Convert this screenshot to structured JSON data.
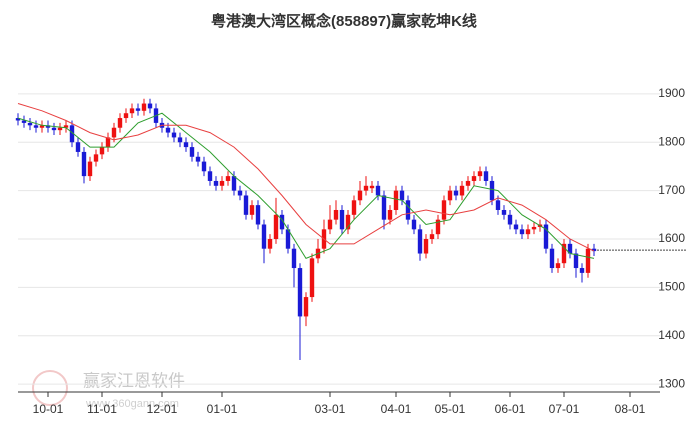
{
  "chart_data": {
    "type": "candlestick",
    "title": "粤港澳大湾区概念(858897)赢家乾坤K线",
    "watermark": "赢家江恩软件",
    "watermark_url": "www.360gann.com",
    "up_color": "#ee1111",
    "down_color": "#1a1ad6",
    "xlim": [
      -0.5,
      107
    ],
    "ylim": [
      1290,
      1970
    ],
    "yticks": [
      1300,
      1400,
      1500,
      1600,
      1700,
      1800,
      1900
    ],
    "grid": true,
    "xticks": [
      {
        "value": 5,
        "label": "10-01"
      },
      {
        "value": 14,
        "label": "11-01"
      },
      {
        "value": 24,
        "label": "12-01"
      },
      {
        "value": 34,
        "label": "01-01"
      },
      {
        "value": 52,
        "label": "03-01"
      },
      {
        "value": 63,
        "label": "04-01"
      },
      {
        "value": 72,
        "label": "05-01"
      },
      {
        "value": 82,
        "label": "06-01"
      },
      {
        "value": 91,
        "label": "07-01"
      },
      {
        "value": 102,
        "label": "08-01"
      }
    ],
    "reference_line": 1577,
    "open": [
      1850,
      1845,
      1840,
      1835,
      1830,
      1835,
      1830,
      1825,
      1830,
      1835,
      1800,
      1780,
      1730,
      1760,
      1775,
      1790,
      1810,
      1830,
      1850,
      1860,
      1870,
      1865,
      1880,
      1870,
      1840,
      1830,
      1820,
      1810,
      1800,
      1790,
      1770,
      1760,
      1740,
      1720,
      1710,
      1720,
      1730,
      1700,
      1690,
      1650,
      1670,
      1630,
      1580,
      1600,
      1650,
      1620,
      1580,
      1540,
      1440,
      1480,
      1560,
      1580,
      1620,
      1640,
      1660,
      1620,
      1650,
      1680,
      1700,
      1705,
      1710,
      1690,
      1640,
      1660,
      1700,
      1680,
      1640,
      1620,
      1570,
      1600,
      1610,
      1640,
      1680,
      1700,
      1690,
      1710,
      1720,
      1730,
      1740,
      1720,
      1680,
      1660,
      1650,
      1630,
      1620,
      1610,
      1620,
      1625,
      1630,
      1580,
      1540,
      1550,
      1590,
      1570,
      1540,
      1530,
      1580
    ],
    "high": [
      1860,
      1855,
      1850,
      1845,
      1845,
      1845,
      1840,
      1840,
      1845,
      1845,
      1810,
      1790,
      1770,
      1785,
      1800,
      1820,
      1840,
      1860,
      1870,
      1880,
      1880,
      1890,
      1890,
      1880,
      1850,
      1840,
      1830,
      1820,
      1810,
      1800,
      1780,
      1770,
      1750,
      1730,
      1730,
      1740,
      1740,
      1710,
      1700,
      1680,
      1680,
      1640,
      1610,
      1685,
      1660,
      1630,
      1590,
      1550,
      1490,
      1570,
      1600,
      1640,
      1670,
      1680,
      1670,
      1660,
      1690,
      1720,
      1730,
      1720,
      1720,
      1700,
      1670,
      1710,
      1710,
      1690,
      1650,
      1630,
      1610,
      1620,
      1650,
      1690,
      1710,
      1710,
      1720,
      1730,
      1740,
      1750,
      1750,
      1730,
      1690,
      1670,
      1660,
      1640,
      1630,
      1630,
      1635,
      1640,
      1640,
      1590,
      1560,
      1600,
      1600,
      1580,
      1550,
      1590,
      1590
    ],
    "low": [
      1835,
      1830,
      1825,
      1820,
      1820,
      1820,
      1815,
      1815,
      1820,
      1790,
      1770,
      1715,
      1720,
      1750,
      1765,
      1780,
      1800,
      1820,
      1840,
      1850,
      1855,
      1855,
      1860,
      1830,
      1820,
      1810,
      1800,
      1790,
      1780,
      1760,
      1750,
      1730,
      1710,
      1700,
      1700,
      1710,
      1690,
      1680,
      1640,
      1640,
      1620,
      1550,
      1570,
      1590,
      1610,
      1570,
      1500,
      1350,
      1420,
      1470,
      1550,
      1570,
      1610,
      1630,
      1610,
      1610,
      1640,
      1670,
      1690,
      1695,
      1680,
      1620,
      1630,
      1650,
      1670,
      1630,
      1610,
      1555,
      1560,
      1590,
      1600,
      1630,
      1670,
      1680,
      1680,
      1700,
      1710,
      1720,
      1710,
      1670,
      1650,
      1640,
      1620,
      1610,
      1600,
      1600,
      1610,
      1615,
      1570,
      1530,
      1530,
      1540,
      1560,
      1520,
      1510,
      1520,
      1565
    ],
    "close": [
      1845,
      1840,
      1835,
      1830,
      1835,
      1830,
      1825,
      1830,
      1835,
      1800,
      1780,
      1730,
      1760,
      1775,
      1790,
      1810,
      1830,
      1850,
      1860,
      1870,
      1865,
      1880,
      1870,
      1840,
      1830,
      1820,
      1810,
      1800,
      1790,
      1770,
      1760,
      1740,
      1720,
      1710,
      1720,
      1730,
      1700,
      1690,
      1650,
      1670,
      1630,
      1580,
      1600,
      1650,
      1620,
      1580,
      1540,
      1440,
      1480,
      1560,
      1580,
      1620,
      1640,
      1660,
      1620,
      1650,
      1680,
      1700,
      1710,
      1710,
      1690,
      1640,
      1660,
      1700,
      1680,
      1640,
      1620,
      1570,
      1600,
      1610,
      1640,
      1680,
      1700,
      1690,
      1710,
      1720,
      1730,
      1740,
      1720,
      1680,
      1660,
      1650,
      1630,
      1620,
      1610,
      1620,
      1625,
      1630,
      1580,
      1540,
      1550,
      1590,
      1570,
      1540,
      1530,
      1580,
      1575
    ],
    "lines": [
      {
        "color": "#2e9e2e",
        "x": [
          0,
          4,
          8,
          12,
          16,
          20,
          24,
          28,
          32,
          36,
          40,
          44,
          48,
          52,
          56,
          60,
          64,
          68,
          72,
          76,
          80,
          84,
          88,
          92,
          96
        ],
        "values": [
          1850,
          1835,
          1830,
          1790,
          1790,
          1840,
          1860,
          1820,
          1780,
          1730,
          1690,
          1640,
          1560,
          1580,
          1640,
          1690,
          1680,
          1630,
          1640,
          1710,
          1700,
          1650,
          1620,
          1570,
          1560
        ]
      },
      {
        "color": "#e84040",
        "x": [
          0,
          4,
          8,
          12,
          16,
          20,
          24,
          28,
          32,
          36,
          40,
          44,
          48,
          52,
          56,
          60,
          64,
          68,
          72,
          76,
          80,
          84,
          88,
          92,
          96
        ],
        "values": [
          1880,
          1865,
          1845,
          1820,
          1805,
          1815,
          1835,
          1835,
          1820,
          1790,
          1745,
          1690,
          1630,
          1590,
          1590,
          1620,
          1650,
          1660,
          1650,
          1660,
          1685,
          1670,
          1640,
          1600,
          1575
        ]
      }
    ]
  }
}
